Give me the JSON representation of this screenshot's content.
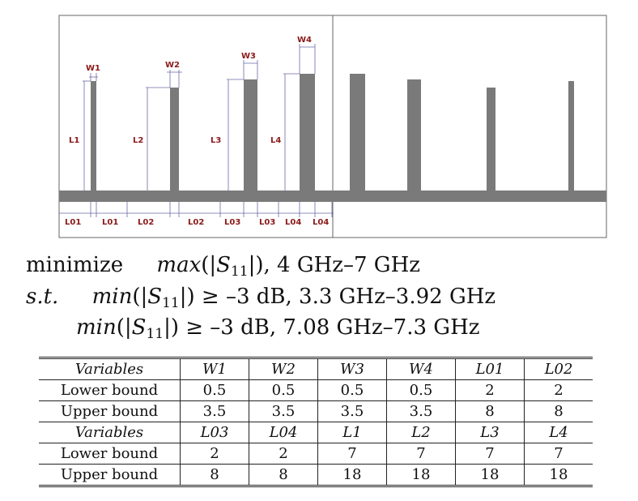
{
  "diagram": {
    "labels": {
      "W1": "W1",
      "W2": "W2",
      "W3": "W3",
      "W4": "W4",
      "L1": "L1",
      "L2": "L2",
      "L3": "L3",
      "L4": "L4",
      "L01a": "L01",
      "L01b": "L01",
      "L02a": "L02",
      "L02b": "L02",
      "L03a": "L03",
      "L03b": "L03",
      "L04a": "L04",
      "L04b": "L04"
    },
    "colors": {
      "stub": "#7a7a7a",
      "line": "#7a7a7a",
      "label": "#8b1a1a",
      "dim": "#6a6aa8"
    }
  },
  "equations": {
    "line1_word": "minimize",
    "line1_func": "max",
    "line1_arg_open": "(|",
    "line1_S": "S",
    "line1_sub": "11",
    "line1_arg_close": "|)",
    "line1_rest": ", 4 GHz–7 GHz",
    "line2_st": "s.t.",
    "line2_func": "min",
    "line2_arg_open": "(|",
    "line2_S": "S",
    "line2_sub": "11",
    "line2_arg_close": "|)",
    "line2_rest": " ≥ –3 dB, 3.3 GHz–3.92 GHz",
    "line3_func": "min",
    "line3_arg_open": "(|",
    "line3_S": "S",
    "line3_sub": "11",
    "line3_arg_close": "|)",
    "line3_rest": " ≥ –3 dB, 7.08 GHz–7.3 GHz"
  },
  "table": {
    "rows": [
      [
        "Variables",
        "W1",
        "W2",
        "W3",
        "W4",
        "L01",
        "L02"
      ],
      [
        "Lower bound",
        "0.5",
        "0.5",
        "0.5",
        "0.5",
        "2",
        "2"
      ],
      [
        "Upper bound",
        "3.5",
        "3.5",
        "3.5",
        "3.5",
        "8",
        "8"
      ],
      [
        "Variables",
        "L03",
        "L04",
        "L1",
        "L2",
        "L3",
        "L4"
      ],
      [
        "Lower bound",
        "2",
        "2",
        "7",
        "7",
        "7",
        "7"
      ],
      [
        "Upper bound",
        "8",
        "8",
        "18",
        "18",
        "18",
        "18"
      ]
    ]
  }
}
